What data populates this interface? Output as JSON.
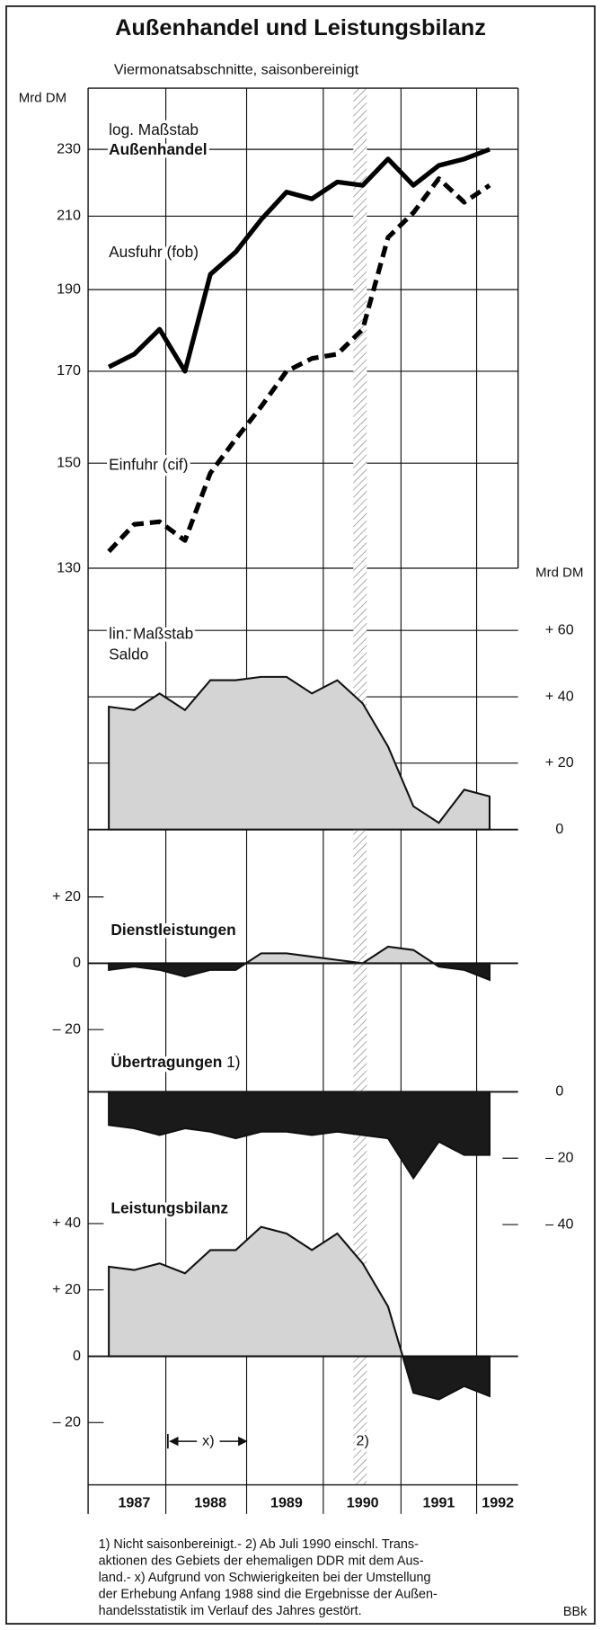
{
  "title": "Außenhandel und Leistungsbilanz",
  "subtitle": "Viermonatsabschnitte, saisonbereinigt",
  "x_axis": {
    "labels": [
      "1987",
      "1988",
      "1989",
      "1990",
      "1991",
      "1992"
    ]
  },
  "markers": {
    "period": "x)",
    "reunification": "2)"
  },
  "footnotes": [
    "1) Nicht saisonbereinigt.- 2) Ab Juli 1990 einschl. Trans-",
    "aktionen des Gebiets der ehemaligen DDR mit dem Aus-",
    "land.- x) Aufgrund von Schwierigkeiten bei der Umstellung",
    "der Erhebung Anfang 1988 sind die Ergebnisse der Außen-",
    "handelsstatistik im Verlauf des Jahres gestört."
  ],
  "source": "BBk",
  "chart_data": [
    {
      "type": "line",
      "scale_note": "log. Maßstab",
      "title": "Außenhandel",
      "y_label": "Mrd DM",
      "log_scale": true,
      "axis_side": "left",
      "ylim": [
        130,
        250
      ],
      "yticks": [
        130,
        150,
        170,
        190,
        210,
        230
      ],
      "grid": true,
      "series": [
        {
          "name": "Ausfuhr (fob)",
          "color": "#000000",
          "style": "solid",
          "values": [
            171,
            174,
            180,
            170,
            194,
            200,
            209,
            217,
            215,
            220,
            219,
            227,
            219,
            225,
            227,
            230
          ]
        },
        {
          "name": "Einfuhr (cif)",
          "color": "#000000",
          "style": "dashed",
          "values": [
            133,
            138,
            138.5,
            135,
            148,
            155,
            162,
            170,
            173,
            174,
            180,
            204,
            211,
            221,
            214,
            219
          ]
        }
      ]
    },
    {
      "type": "area",
      "scale_note": "lin. Maßstab",
      "title": "Saldo",
      "y_label": "Mrd DM",
      "axis_side": "right",
      "ylim": [
        0,
        75
      ],
      "yticks": [
        0,
        {
          "value": 20,
          "label": "+ 20"
        },
        {
          "value": 40,
          "label": "+ 40"
        },
        {
          "value": 60,
          "label": "+ 60"
        }
      ],
      "grid": true,
      "positive_color": "#d4d4d4",
      "negative_color": "#1a1a1a",
      "values": [
        37,
        36,
        41,
        36,
        45,
        45,
        46,
        46,
        41,
        45,
        38,
        25,
        7,
        2,
        12,
        10
      ]
    },
    {
      "type": "area",
      "title": "Dienstleistungen",
      "axis_side": "left",
      "ylim": [
        -30,
        30
      ],
      "yticks": [
        {
          "value": -20,
          "label": "– 20"
        },
        0,
        {
          "value": 20,
          "label": "+ 20"
        }
      ],
      "grid": false,
      "positive_color": "#d4d4d4",
      "negative_color": "#1a1a1a",
      "values": [
        -2,
        -1,
        -2,
        -4,
        -2,
        -2,
        3,
        3,
        2,
        1,
        0,
        5,
        4,
        -1,
        -2,
        -5
      ]
    },
    {
      "type": "area",
      "title": "Übertragungen",
      "title_note": "1)",
      "axis_side": "right",
      "ylim": [
        -45,
        0
      ],
      "yticks": [
        {
          "value": -40,
          "label": "– 40"
        },
        {
          "value": -20,
          "label": "– 20"
        },
        0
      ],
      "grid": false,
      "positive_color": "#d4d4d4",
      "negative_color": "#1a1a1a",
      "values": [
        -10,
        -11,
        -13,
        -11,
        -12,
        -14,
        -12,
        -12,
        -13,
        -12,
        -13,
        -14,
        -26,
        -15,
        -19,
        -19
      ]
    },
    {
      "type": "area",
      "title": "Leistungsbilanz",
      "axis_side": "left",
      "ylim": [
        -35,
        45
      ],
      "yticks": [
        {
          "value": -20,
          "label": "– 20"
        },
        0,
        {
          "value": 20,
          "label": "+ 20"
        },
        {
          "value": 40,
          "label": "+ 40"
        }
      ],
      "grid": false,
      "positive_color": "#d4d4d4",
      "negative_color": "#1a1a1a",
      "values": [
        27,
        26,
        28,
        25,
        32,
        32,
        39,
        37,
        32,
        37,
        28,
        15,
        -11,
        -13,
        -9,
        -12
      ]
    }
  ]
}
